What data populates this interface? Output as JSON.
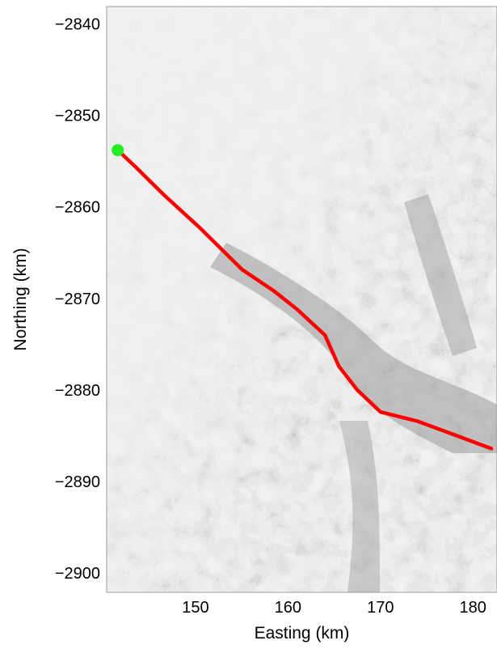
{
  "chart_data": {
    "type": "line",
    "background": "grayscale satellite image of glaciers and mountains",
    "xlabel": "Easting (km)",
    "ylabel": "Northing (km)",
    "xlim": [
      140.4,
      182.6
    ],
    "ylim": [
      -2902.1,
      -2838.1
    ],
    "x_ticks": [
      150,
      160,
      170,
      180
    ],
    "y_ticks": [
      -2840,
      -2850,
      -2860,
      -2870,
      -2880,
      -2890,
      -2900
    ],
    "grid": false,
    "series": [
      {
        "color": "#ff0000",
        "x": [
          141.6,
          143.5,
          146.5,
          150.5,
          155.0,
          158.5,
          161.0,
          164.0,
          165.5,
          167.5,
          170.0,
          174.0,
          178.0,
          182.0
        ],
        "y": [
          -2853.8,
          -2855.6,
          -2858.6,
          -2862.3,
          -2866.8,
          -2869.2,
          -2871.2,
          -2874.0,
          -2877.4,
          -2880.0,
          -2882.4,
          -2883.4,
          -2884.9,
          -2886.4
        ]
      }
    ],
    "start_marker": {
      "x": 141.6,
      "y": -2853.8,
      "color": "#22ee22"
    }
  },
  "icons": {
    "start_marker": "circle-marker-icon"
  }
}
